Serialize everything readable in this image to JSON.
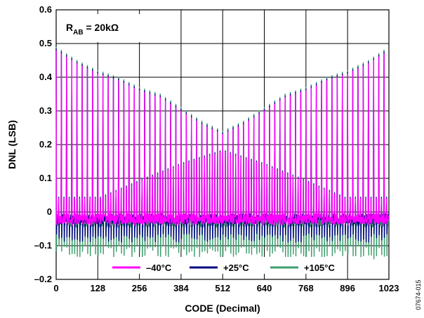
{
  "chart_data": {
    "type": "line",
    "xlabel": "CODE (Decimal)",
    "ylabel": "DNL (LSB)",
    "xlim": [
      0,
      1023
    ],
    "ylim": [
      -0.2,
      0.6
    ],
    "xticks": [
      "0",
      "128",
      "256",
      "384",
      "512",
      "640",
      "768",
      "896",
      "1023"
    ],
    "yticks": [
      "–0.2",
      "–0.1",
      "0",
      "0.1",
      "0.2",
      "0.3",
      "0.4",
      "0.5",
      "0.6"
    ],
    "grid": true,
    "legend_position": "bottom-center",
    "annotation": {
      "main": "R",
      "sub": "AB",
      "tail": " = 20kΩ"
    },
    "figure_id": "07674-015",
    "spike_period_codes": 16,
    "spike_peaks": {
      "x": [
        0,
        64,
        128,
        192,
        256,
        320,
        384,
        448,
        512,
        576,
        640,
        704,
        768,
        832,
        896,
        960,
        1023
      ],
      "y": [
        0.48,
        0.44,
        0.41,
        0.39,
        0.36,
        0.34,
        0.3,
        0.26,
        0.23,
        0.26,
        0.3,
        0.34,
        0.36,
        0.39,
        0.41,
        0.44,
        0.48
      ]
    },
    "minor_spike_peaks": {
      "x": [
        136,
        256,
        384,
        512,
        640,
        768,
        888
      ],
      "y": [
        0.04,
        0.09,
        0.14,
        0.18,
        0.14,
        0.09,
        0.04
      ]
    },
    "series": [
      {
        "name": "–40°C",
        "color": "#ff00ff",
        "baseline": -0.02,
        "dip": -0.04,
        "peak_offset": 0.0
      },
      {
        "name": "+25°C",
        "color": "#000080",
        "baseline": -0.02,
        "dip": -0.09,
        "peak_offset": 0.005
      },
      {
        "name": "+105°C",
        "color": "#3c9d6c",
        "baseline": -0.03,
        "dip": -0.14,
        "peak_offset": 0.01
      }
    ]
  }
}
